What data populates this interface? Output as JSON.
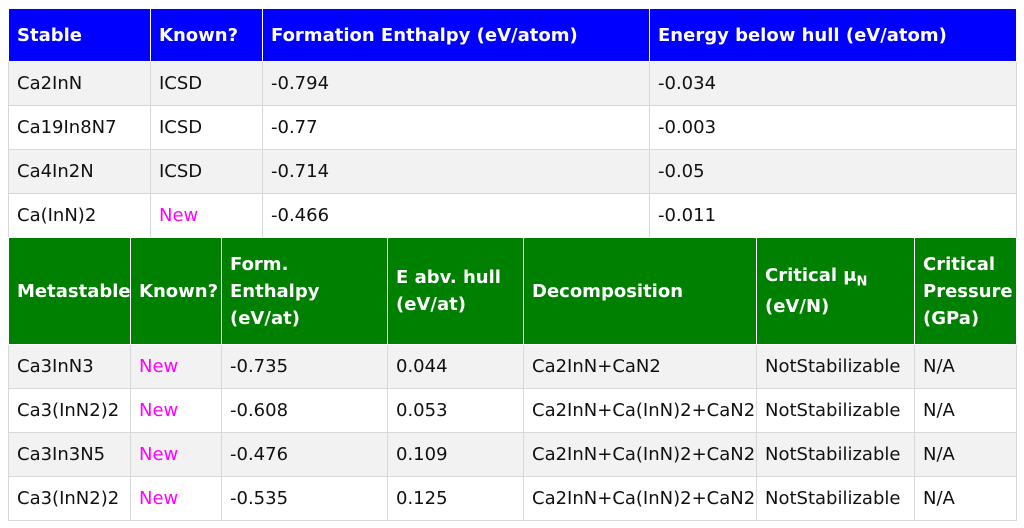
{
  "stable": {
    "headers": [
      "Stable",
      "Known?",
      "Formation Enthalpy (eV/atom)",
      "Energy below hull (eV/atom)"
    ],
    "rows": [
      [
        "Ca2InN",
        "ICSD",
        "-0.794",
        "-0.034"
      ],
      [
        "Ca19In8N7",
        "ICSD",
        "-0.77",
        "-0.003"
      ],
      [
        "Ca4In2N",
        "ICSD",
        "-0.714",
        "-0.05"
      ],
      [
        "Ca(InN)2",
        "New",
        "-0.466",
        "-0.011"
      ]
    ]
  },
  "metastable": {
    "headers": {
      "name": "Metastable",
      "known": "Known?",
      "enthalpy": "Form. Enthalpy (eV/at)",
      "hull": "E abv. hull (eV/at)",
      "decomposition": "Decomposition",
      "mu_main": "Critical μ",
      "mu_sub": "N",
      "mu_unit": "(eV/N)",
      "pressure": "Critical Pressure (GPa)"
    },
    "rows": [
      [
        "Ca3InN3",
        "New",
        "-0.735",
        "0.044",
        "Ca2InN+CaN2",
        "NotStabilizable",
        "N/A"
      ],
      [
        "Ca3(InN2)2",
        "New",
        "-0.608",
        "0.053",
        "Ca2InN+Ca(InN)2+CaN2",
        "NotStabilizable",
        "N/A"
      ],
      [
        "Ca3In3N5",
        "New",
        "-0.476",
        "0.109",
        "Ca2InN+Ca(InN)2+CaN2",
        "NotStabilizable",
        "N/A"
      ],
      [
        "Ca3(InN2)2",
        "New",
        "-0.535",
        "0.125",
        "Ca2InN+Ca(InN)2+CaN2",
        "NotStabilizable",
        "N/A"
      ]
    ]
  },
  "colors": {
    "stable_header": "#0000ff",
    "metastable_header": "#008000",
    "new_text": "#ff00ff"
  }
}
